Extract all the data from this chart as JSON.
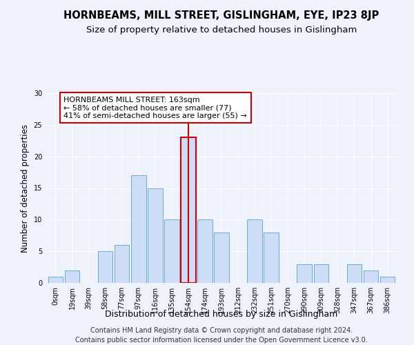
{
  "title": "HORNBEAMS, MILL STREET, GISLINGHAM, EYE, IP23 8JP",
  "subtitle": "Size of property relative to detached houses in Gislingham",
  "xlabel": "Distribution of detached houses by size in Gislingham",
  "ylabel": "Number of detached properties",
  "footer_line1": "Contains HM Land Registry data © Crown copyright and database right 2024.",
  "footer_line2": "Contains public sector information licensed under the Open Government Licence v3.0.",
  "bins": [
    "0sqm",
    "19sqm",
    "39sqm",
    "58sqm",
    "77sqm",
    "97sqm",
    "116sqm",
    "135sqm",
    "154sqm",
    "174sqm",
    "193sqm",
    "212sqm",
    "232sqm",
    "251sqm",
    "270sqm",
    "290sqm",
    "309sqm",
    "328sqm",
    "347sqm",
    "367sqm",
    "386sqm"
  ],
  "bar_values": [
    1,
    2,
    0,
    5,
    6,
    17,
    15,
    10,
    23,
    10,
    8,
    0,
    10,
    8,
    0,
    3,
    3,
    0,
    3,
    2,
    1
  ],
  "bar_color": "#ccddf5",
  "bar_edge_color": "#6aaad4",
  "highlight_bar_index": 8,
  "highlight_bar_edge_color": "#cc0000",
  "vline_color": "#cc0000",
  "annotation_text": "HORNBEAMS MILL STREET: 163sqm\n← 58% of detached houses are smaller (77)\n41% of semi-detached houses are larger (55) →",
  "annotation_box_edge_color": "#cc0000",
  "annotation_fontsize": 8,
  "ylim": [
    0,
    30
  ],
  "yticks": [
    0,
    5,
    10,
    15,
    20,
    25,
    30
  ],
  "title_fontsize": 10.5,
  "subtitle_fontsize": 9.5,
  "xlabel_fontsize": 9,
  "ylabel_fontsize": 8.5,
  "footer_fontsize": 7,
  "tick_fontsize": 7,
  "background_color": "#eef2fb"
}
